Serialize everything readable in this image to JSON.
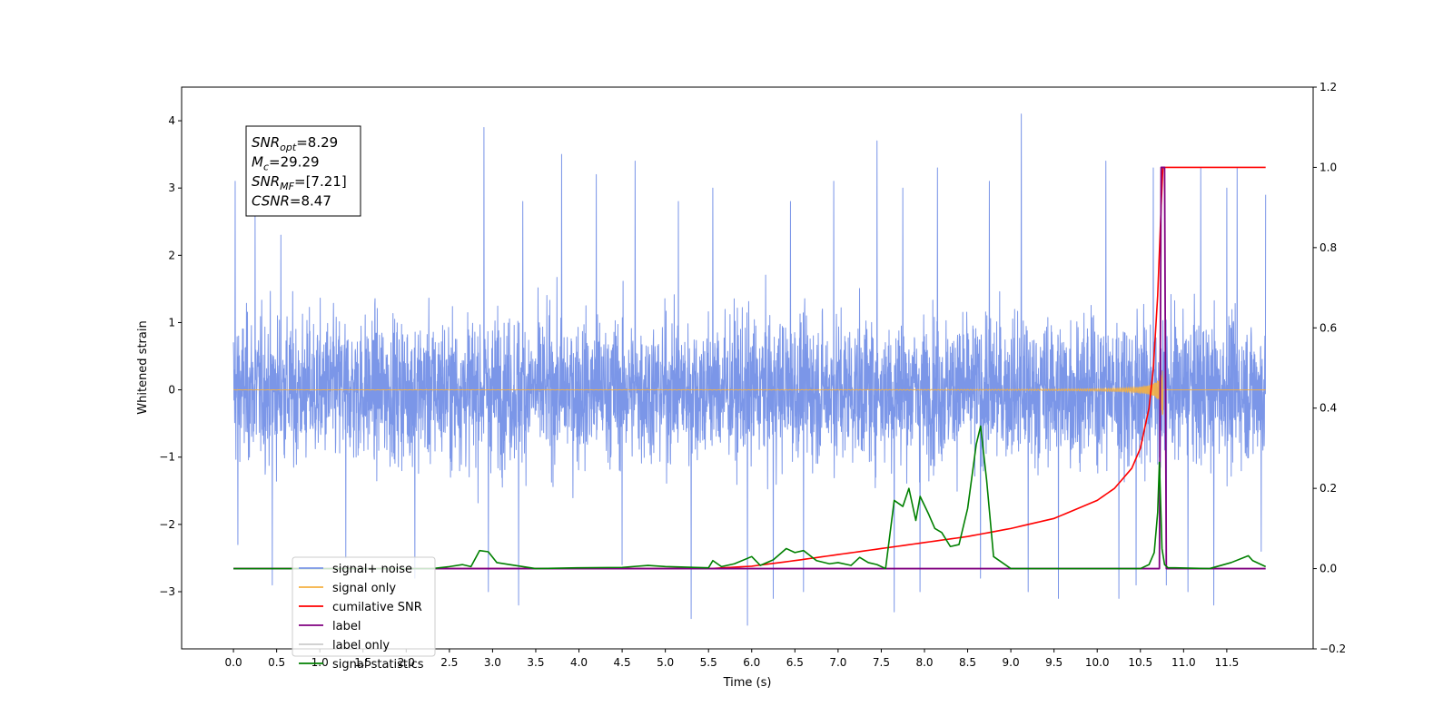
{
  "chart_data": {
    "type": "line",
    "title": "",
    "xlabel": "Time (s)",
    "ylabel": "Whitened strain",
    "xlim": [
      -0.6,
      12.5
    ],
    "ylim": [
      -3.85,
      4.5
    ],
    "y2lim": [
      -0.2,
      1.2
    ],
    "xticks": [
      0.0,
      0.5,
      1.0,
      1.5,
      2.0,
      2.5,
      3.0,
      3.5,
      4.0,
      4.5,
      5.0,
      5.5,
      6.0,
      6.5,
      7.0,
      7.5,
      8.0,
      8.5,
      9.0,
      9.5,
      10.0,
      10.5,
      11.0,
      11.5
    ],
    "xtick_labels": [
      "0.0",
      "0.5",
      "1.0",
      "1.5",
      "2.0",
      "2.5",
      "3.0",
      "3.5",
      "4.0",
      "4.5",
      "5.0",
      "5.5",
      "6.0",
      "6.5",
      "7.0",
      "7.5",
      "8.0",
      "8.5",
      "9.0",
      "9.5",
      "10.0",
      "10.5",
      "11.0",
      "11.5"
    ],
    "yticks": [
      -3,
      -2,
      -1,
      0,
      1,
      2,
      3,
      4
    ],
    "ytick_labels": [
      "−3",
      "−2",
      "−1",
      "0",
      "1",
      "2",
      "3",
      "4"
    ],
    "y2ticks": [
      -0.2,
      0.0,
      0.2,
      0.4,
      0.6,
      0.8,
      1.0,
      1.2
    ],
    "y2tick_labels": [
      "−0.2",
      "0.0",
      "0.2",
      "0.4",
      "0.6",
      "0.8",
      "1.0",
      "1.2"
    ],
    "annotations": [
      {
        "name": "SNR",
        "sub": "opt",
        "value": "=8.29"
      },
      {
        "name": "M",
        "sub": "c",
        "value": "=29.29"
      },
      {
        "name": "SNR",
        "sub": "MF",
        "value": "=[7.21]"
      },
      {
        "name": "CSNR",
        "sub": "",
        "value": "=8.47"
      }
    ],
    "legend_position": "lower-left",
    "series": [
      {
        "name": "signal+ noise",
        "axis": "left",
        "color": "#7b96e8",
        "description_stats": {
          "std": 0.75,
          "tmin": 0.0,
          "tmax": 11.95
        },
        "peaks": [
          [
            0.02,
            3.1
          ],
          [
            0.25,
            2.6
          ],
          [
            0.55,
            2.3
          ],
          [
            2.9,
            3.9
          ],
          [
            3.35,
            2.8
          ],
          [
            3.8,
            3.5
          ],
          [
            4.2,
            3.2
          ],
          [
            4.65,
            3.4
          ],
          [
            5.15,
            2.8
          ],
          [
            5.55,
            3.0
          ],
          [
            6.45,
            2.8
          ],
          [
            6.95,
            3.1
          ],
          [
            7.45,
            3.7
          ],
          [
            7.75,
            3.0
          ],
          [
            8.15,
            3.3
          ],
          [
            8.75,
            3.1
          ],
          [
            9.12,
            4.1
          ],
          [
            9.55,
            3.2
          ],
          [
            10.1,
            3.4
          ],
          [
            10.65,
            3.3
          ],
          [
            11.2,
            3.3
          ],
          [
            11.5,
            3.0
          ],
          [
            11.62,
            3.3
          ],
          [
            11.95,
            2.9
          ]
        ],
        "troughs": [
          [
            0.05,
            -2.3
          ],
          [
            0.45,
            -2.9
          ],
          [
            1.3,
            -2.5
          ],
          [
            2.1,
            -2.8
          ],
          [
            2.95,
            -3.0
          ],
          [
            3.3,
            -3.2
          ],
          [
            4.5,
            -2.6
          ],
          [
            5.3,
            -3.4
          ],
          [
            5.95,
            -3.5
          ],
          [
            6.25,
            -3.1
          ],
          [
            6.6,
            -3.0
          ],
          [
            7.65,
            -3.3
          ],
          [
            7.95,
            -3.0
          ],
          [
            8.65,
            -2.8
          ],
          [
            9.2,
            -3.0
          ],
          [
            9.55,
            -3.1
          ],
          [
            10.25,
            -3.1
          ],
          [
            10.45,
            -2.9
          ],
          [
            10.8,
            -2.9
          ],
          [
            11.05,
            -3.0
          ],
          [
            11.35,
            -3.2
          ],
          [
            11.9,
            -2.4
          ]
        ]
      },
      {
        "name": "signal only",
        "axis": "left",
        "color": "#f5b041",
        "chirp": {
          "t_merge": 10.76,
          "amp_max": 1.3,
          "tmin": 0.0,
          "tmax": 11.95
        }
      },
      {
        "name": "cumilative SNR",
        "axis": "right",
        "color": "#ff0000",
        "x": [
          0.0,
          5.5,
          6.0,
          6.5,
          7.0,
          7.5,
          8.0,
          8.5,
          9.0,
          9.5,
          10.0,
          10.2,
          10.4,
          10.5,
          10.6,
          10.65,
          10.7,
          10.74,
          10.76,
          11.95
        ],
        "values": [
          0.0,
          0.0,
          0.006,
          0.02,
          0.035,
          0.05,
          0.065,
          0.08,
          0.1,
          0.125,
          0.17,
          0.2,
          0.25,
          0.3,
          0.4,
          0.5,
          0.68,
          0.9,
          1.0,
          1.0
        ]
      },
      {
        "name": "label",
        "axis": "right",
        "color": "#800080",
        "x": [
          0.0,
          10.72,
          10.74,
          10.78,
          10.8,
          11.95
        ],
        "values": [
          0.0,
          0.0,
          1.0,
          1.0,
          0.0,
          0.0
        ]
      },
      {
        "name": "label only",
        "axis": "right",
        "color": "#cccccc",
        "legend_only": true,
        "x": [],
        "values": []
      },
      {
        "name": "signal statistics",
        "axis": "right",
        "color": "#008000",
        "x": [
          0.0,
          2.3,
          2.5,
          2.65,
          2.75,
          2.85,
          2.95,
          3.05,
          3.2,
          3.5,
          4.0,
          4.5,
          4.8,
          5.0,
          5.5,
          5.55,
          5.65,
          5.8,
          6.0,
          6.1,
          6.25,
          6.4,
          6.5,
          6.6,
          6.75,
          6.9,
          7.0,
          7.15,
          7.25,
          7.35,
          7.45,
          7.55,
          7.65,
          7.75,
          7.82,
          7.9,
          7.95,
          8.05,
          8.12,
          8.2,
          8.3,
          8.4,
          8.5,
          8.6,
          8.65,
          8.72,
          8.8,
          9.0,
          10.5,
          10.6,
          10.66,
          10.7,
          10.72,
          10.75,
          10.78,
          10.82,
          10.9,
          11.3,
          11.55,
          11.75,
          11.8,
          11.95
        ],
        "values": [
          0.0,
          0.0,
          0.005,
          0.01,
          0.005,
          0.045,
          0.042,
          0.015,
          0.01,
          0.0,
          0.002,
          0.003,
          0.008,
          0.005,
          0.002,
          0.02,
          0.005,
          0.012,
          0.03,
          0.008,
          0.022,
          0.05,
          0.04,
          0.045,
          0.02,
          0.012,
          0.015,
          0.008,
          0.028,
          0.015,
          0.01,
          0.0,
          0.17,
          0.155,
          0.2,
          0.12,
          0.18,
          0.135,
          0.1,
          0.09,
          0.055,
          0.06,
          0.15,
          0.31,
          0.355,
          0.22,
          0.03,
          0.0,
          0.0,
          0.01,
          0.04,
          0.14,
          0.265,
          0.05,
          0.01,
          0.002,
          0.002,
          0.0,
          0.015,
          0.032,
          0.02,
          0.005
        ]
      }
    ]
  }
}
